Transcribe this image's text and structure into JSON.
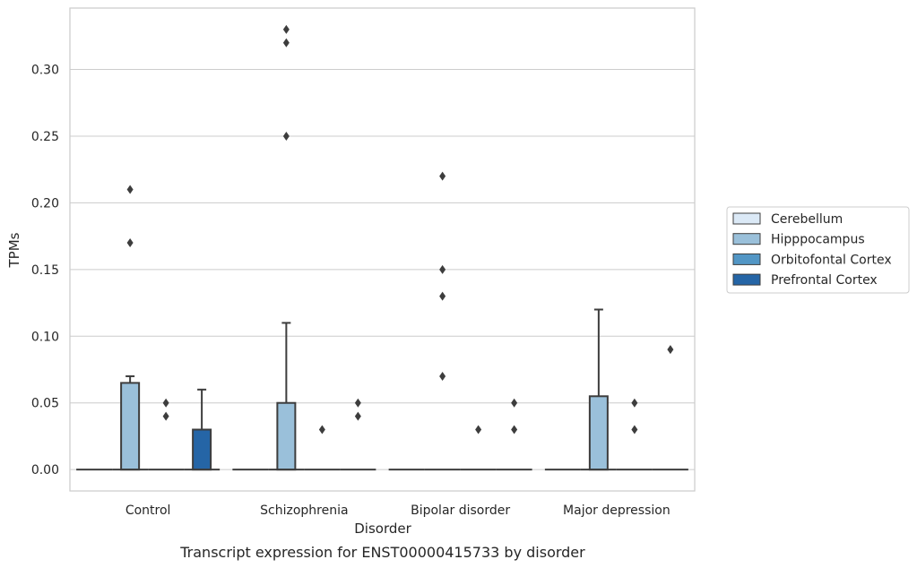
{
  "chart_data": {
    "type": "box",
    "title": "",
    "caption": "Transcript expression for ENST00000415733 by disorder",
    "xlabel": "Disorder",
    "ylabel": "TPMs",
    "ylim": [
      -0.016,
      0.346
    ],
    "yticks": [
      "0.00",
      "0.05",
      "0.10",
      "0.15",
      "0.20",
      "0.25",
      "0.30"
    ],
    "categories": [
      "Control",
      "Schizophrenia",
      "Bipolar disorder",
      "Major depression"
    ],
    "grid": "horizontal",
    "legend_position": "right",
    "series": [
      {
        "name": "Cerebellum",
        "color": "#dbe9f6",
        "boxes": [
          {
            "q1": 0,
            "median": 0,
            "q3": 0,
            "whisker_low": 0,
            "whisker_high": 0,
            "outliers": []
          },
          {
            "q1": 0,
            "median": 0,
            "q3": 0,
            "whisker_low": 0,
            "whisker_high": 0,
            "outliers": []
          },
          {
            "q1": 0,
            "median": 0,
            "q3": 0,
            "whisker_low": 0,
            "whisker_high": 0,
            "outliers": []
          },
          {
            "q1": 0,
            "median": 0,
            "q3": 0,
            "whisker_low": 0,
            "whisker_high": 0,
            "outliers": []
          }
        ]
      },
      {
        "name": "Hipppocampus",
        "color": "#9ac0da",
        "boxes": [
          {
            "q1": 0,
            "median": 0,
            "q3": 0.065,
            "whisker_low": 0,
            "whisker_high": 0.07,
            "outliers": [
              0.17,
              0.21
            ]
          },
          {
            "q1": 0,
            "median": 0,
            "q3": 0.05,
            "whisker_low": 0,
            "whisker_high": 0.11,
            "outliers": [
              0.25,
              0.32,
              0.33
            ]
          },
          {
            "q1": 0,
            "median": 0,
            "q3": 0,
            "whisker_low": 0,
            "whisker_high": 0,
            "outliers": [
              0.07,
              0.13,
              0.15,
              0.22
            ]
          },
          {
            "q1": 0,
            "median": 0,
            "q3": 0.055,
            "whisker_low": 0,
            "whisker_high": 0.12,
            "outliers": []
          }
        ]
      },
      {
        "name": "Orbitofontal Cortex",
        "color": "#5296c5",
        "boxes": [
          {
            "q1": 0,
            "median": 0,
            "q3": 0,
            "whisker_low": 0,
            "whisker_high": 0,
            "outliers": [
              0.04,
              0.05
            ]
          },
          {
            "q1": 0,
            "median": 0,
            "q3": 0,
            "whisker_low": 0,
            "whisker_high": 0,
            "outliers": [
              0.03
            ]
          },
          {
            "q1": 0,
            "median": 0,
            "q3": 0,
            "whisker_low": 0,
            "whisker_high": 0,
            "outliers": [
              0.03
            ]
          },
          {
            "q1": 0,
            "median": 0,
            "q3": 0,
            "whisker_low": 0,
            "whisker_high": 0,
            "outliers": [
              0.03,
              0.05
            ]
          }
        ]
      },
      {
        "name": "Prefrontal Cortex",
        "color": "#2565a6",
        "boxes": [
          {
            "q1": 0,
            "median": 0,
            "q3": 0.03,
            "whisker_low": 0,
            "whisker_high": 0.06,
            "outliers": []
          },
          {
            "q1": 0,
            "median": 0,
            "q3": 0,
            "whisker_low": 0,
            "whisker_high": 0,
            "outliers": [
              0.04,
              0.05
            ]
          },
          {
            "q1": 0,
            "median": 0,
            "q3": 0,
            "whisker_low": 0,
            "whisker_high": 0,
            "outliers": [
              0.03,
              0.05
            ]
          },
          {
            "q1": 0,
            "median": 0,
            "q3": 0,
            "whisker_low": 0,
            "whisker_high": 0,
            "outliers": [
              0.09
            ]
          }
        ]
      }
    ]
  }
}
